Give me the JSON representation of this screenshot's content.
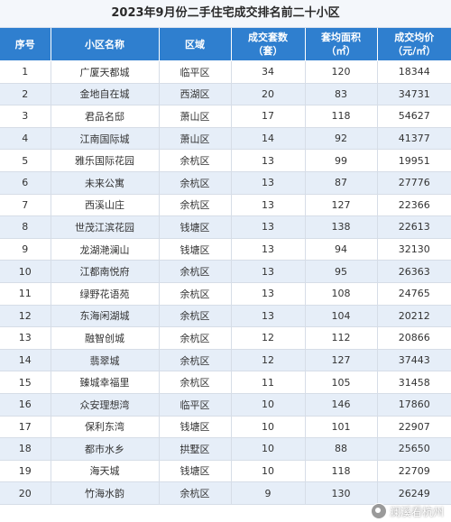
{
  "title": "2023年9月份二手住宅成交排名前二十小区",
  "header": {
    "rank": "序号",
    "name": "小区名称",
    "district": "区域",
    "count_line1": "成交套数",
    "count_line2": "（套）",
    "area_line1": "套均面积",
    "area_line2": "（㎡）",
    "price_line1": "成交均价",
    "price_line2": "（元/㎡）"
  },
  "rows": [
    {
      "rank": "1",
      "name": "广厦天都城",
      "district": "临平区",
      "count": "34",
      "area": "120",
      "price": "18344"
    },
    {
      "rank": "2",
      "name": "金地自在城",
      "district": "西湖区",
      "count": "20",
      "area": "83",
      "price": "34731"
    },
    {
      "rank": "3",
      "name": "君品名邸",
      "district": "萧山区",
      "count": "17",
      "area": "118",
      "price": "54627"
    },
    {
      "rank": "4",
      "name": "江南国际城",
      "district": "萧山区",
      "count": "14",
      "area": "92",
      "price": "41377"
    },
    {
      "rank": "5",
      "name": "雅乐国际花园",
      "district": "余杭区",
      "count": "13",
      "area": "99",
      "price": "19951"
    },
    {
      "rank": "6",
      "name": "未来公寓",
      "district": "余杭区",
      "count": "13",
      "area": "87",
      "price": "27776"
    },
    {
      "rank": "7",
      "name": "西溪山庄",
      "district": "余杭区",
      "count": "13",
      "area": "127",
      "price": "22366"
    },
    {
      "rank": "8",
      "name": "世茂江滨花园",
      "district": "钱塘区",
      "count": "13",
      "area": "138",
      "price": "22613"
    },
    {
      "rank": "9",
      "name": "龙湖滟澜山",
      "district": "钱塘区",
      "count": "13",
      "area": "94",
      "price": "32130"
    },
    {
      "rank": "10",
      "name": "江都南悦府",
      "district": "余杭区",
      "count": "13",
      "area": "95",
      "price": "26363"
    },
    {
      "rank": "11",
      "name": "绿野花语苑",
      "district": "余杭区",
      "count": "13",
      "area": "108",
      "price": "24765"
    },
    {
      "rank": "12",
      "name": "东海闲湖城",
      "district": "余杭区",
      "count": "13",
      "area": "104",
      "price": "20212"
    },
    {
      "rank": "13",
      "name": "融智创城",
      "district": "余杭区",
      "count": "12",
      "area": "112",
      "price": "20866"
    },
    {
      "rank": "14",
      "name": "翡翠城",
      "district": "余杭区",
      "count": "12",
      "area": "127",
      "price": "37443"
    },
    {
      "rank": "15",
      "name": "臻城幸福里",
      "district": "余杭区",
      "count": "11",
      "area": "105",
      "price": "31458"
    },
    {
      "rank": "16",
      "name": "众安理想湾",
      "district": "临平区",
      "count": "10",
      "area": "146",
      "price": "17860"
    },
    {
      "rank": "17",
      "name": "保利东湾",
      "district": "钱塘区",
      "count": "10",
      "area": "101",
      "price": "22907"
    },
    {
      "rank": "18",
      "name": "都市水乡",
      "district": "拱墅区",
      "count": "10",
      "area": "88",
      "price": "25650"
    },
    {
      "rank": "19",
      "name": "海天城",
      "district": "钱塘区",
      "count": "10",
      "area": "118",
      "price": "22709"
    },
    {
      "rank": "20",
      "name": "竹海水韵",
      "district": "余杭区",
      "count": "9",
      "area": "130",
      "price": "26249"
    }
  ],
  "watermark": "澜溪看杭州"
}
